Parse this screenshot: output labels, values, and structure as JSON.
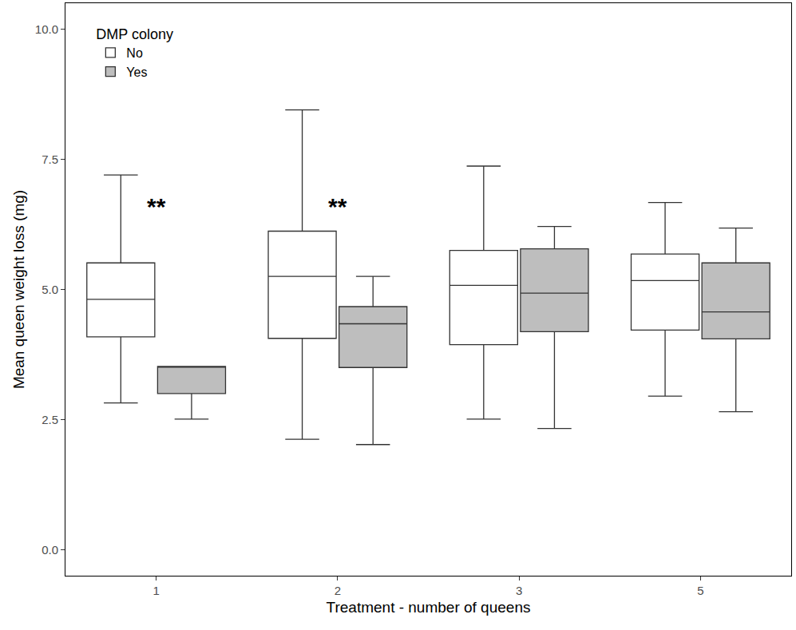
{
  "chart_data": {
    "type": "box",
    "x_label": "Treatment - number of queens",
    "y_label": "Mean queen weight loss (mg)",
    "legend_title": "DMP colony",
    "legend": "top-left",
    "grid": false,
    "categories": [
      "1",
      "2",
      "3",
      "5"
    ],
    "series": [
      {
        "name": "No",
        "color": "#ffffff",
        "lowerfence": [
          2.82,
          2.12,
          2.51,
          2.95
        ],
        "q1": [
          4.09,
          4.06,
          3.94,
          4.22
        ],
        "median": [
          4.81,
          5.25,
          5.08,
          5.17
        ],
        "q3": [
          5.51,
          6.12,
          5.75,
          5.68
        ],
        "upperfence": [
          7.2,
          8.45,
          7.37,
          6.67
        ]
      },
      {
        "name": "Yes",
        "color": "#bebebe",
        "lowerfence": [
          2.51,
          2.02,
          2.33,
          2.65
        ],
        "q1": [
          3.0,
          3.5,
          4.19,
          4.05
        ],
        "median": [
          3.52,
          4.34,
          4.93,
          4.57
        ],
        "q3": [
          3.52,
          4.67,
          5.78,
          5.51
        ],
        "upperfence": [
          3.52,
          5.25,
          6.21,
          6.18
        ]
      }
    ],
    "annotations": [
      {
        "category": "1",
        "y": 6.6,
        "text": "**"
      },
      {
        "category": "2",
        "y": 6.6,
        "text": "**"
      }
    ],
    "ylim": [
      -0.5,
      10.5
    ],
    "yticks": [
      {
        "value": 0,
        "label": "0.0"
      },
      {
        "value": 2.5,
        "label": "2.5"
      },
      {
        "value": 5,
        "label": "5.0"
      },
      {
        "value": 7.5,
        "label": "7.5"
      },
      {
        "value": 10,
        "label": "10.0"
      }
    ]
  }
}
